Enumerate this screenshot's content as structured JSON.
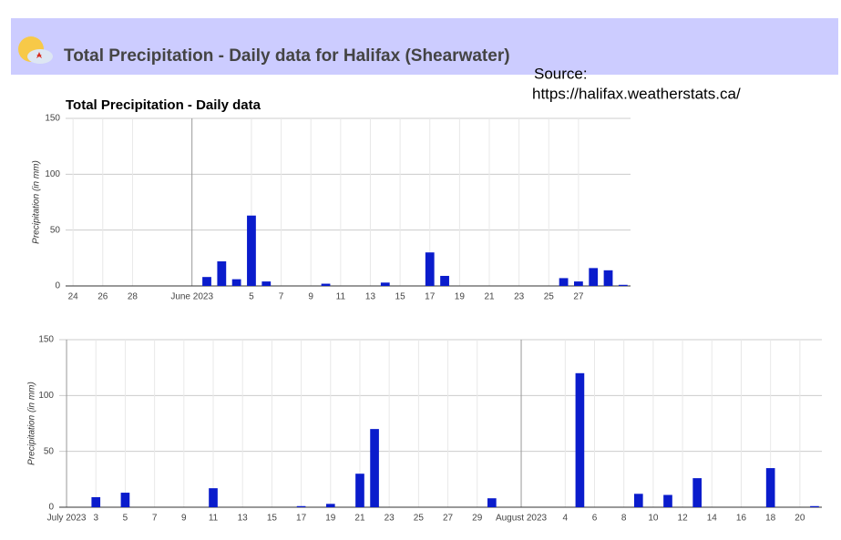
{
  "header": {
    "title": "Total Precipitation - Daily data for Halifax (Shearwater)",
    "source_label": "Source:",
    "source_url": "https://halifax.weatherstats.ca/"
  },
  "chart_data": [
    {
      "type": "bar",
      "title": "Total Precipitation - Daily data",
      "y_label": "Precipitation (in mm)",
      "color": "#0a1ccc",
      "grid": true,
      "categories": [
        "24",
        null,
        "26",
        null,
        "28",
        null,
        null,
        null,
        "June 2023",
        null,
        null,
        null,
        "5",
        null,
        "7",
        null,
        "9",
        null,
        "11",
        null,
        "13",
        null,
        "15",
        null,
        "17",
        null,
        "19",
        null,
        "21",
        null,
        "23",
        null,
        "25",
        null,
        "27",
        null,
        null,
        null
      ],
      "values": [
        0,
        0,
        0,
        0,
        0,
        0,
        0,
        0,
        0,
        8,
        22,
        6,
        63,
        4,
        0,
        0,
        0,
        2,
        0,
        0,
        0,
        3,
        0,
        0,
        30,
        9,
        0,
        0,
        0,
        0,
        0,
        0,
        0,
        7,
        4,
        16,
        14,
        1
      ],
      "ylim": [
        0,
        150
      ],
      "yticks": [
        0,
        50,
        100,
        150
      ]
    },
    {
      "type": "bar",
      "y_label": "Precipitation (in mm)",
      "color": "#0a1ccc",
      "grid": true,
      "categories": [
        "July 2023",
        null,
        "3",
        null,
        "5",
        null,
        "7",
        null,
        "9",
        null,
        "11",
        null,
        "13",
        null,
        "15",
        null,
        "17",
        null,
        "19",
        null,
        "21",
        null,
        "23",
        null,
        "25",
        null,
        "27",
        null,
        "29",
        null,
        null,
        "August 2023",
        null,
        null,
        "4",
        null,
        "6",
        null,
        "8",
        null,
        "10",
        null,
        "12",
        null,
        "14",
        null,
        "16",
        null,
        "18",
        null,
        "20",
        null
      ],
      "values": [
        0,
        0,
        9,
        0,
        13,
        0,
        0,
        0,
        0,
        0,
        17,
        0,
        0,
        0,
        0,
        0,
        1,
        0,
        3,
        0,
        30,
        70,
        0,
        0,
        0,
        0,
        0,
        0,
        0,
        8,
        0,
        0,
        0,
        0,
        0,
        120,
        0,
        0,
        0,
        12,
        0,
        11,
        0,
        26,
        0,
        0,
        0,
        0,
        35,
        0,
        0,
        1
      ],
      "ylim": [
        0,
        150
      ],
      "yticks": [
        0,
        50,
        100,
        150
      ]
    }
  ]
}
